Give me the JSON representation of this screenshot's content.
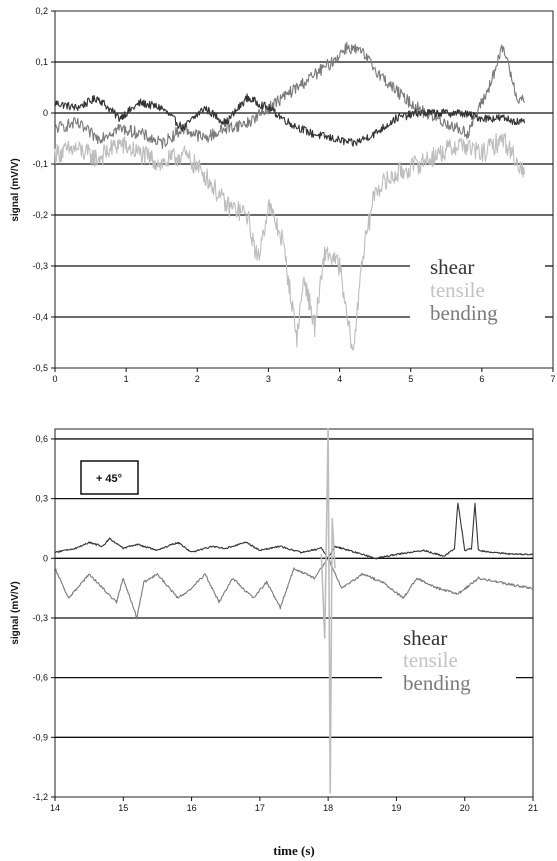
{
  "chart_data": [
    {
      "type": "line",
      "title": "",
      "xlabel": "",
      "ylabel": "signal (mV/V)",
      "xlim": [
        0,
        7
      ],
      "ylim": [
        -0.5,
        0.2
      ],
      "x_ticks": [
        "0",
        "1",
        "2",
        "3",
        "4",
        "5",
        "6",
        "7"
      ],
      "y_ticks": [
        "0,2",
        "0,1",
        "0",
        "-0,1",
        "-0,2",
        "-0,3",
        "-0,4",
        "-0,5"
      ],
      "gridlines_y": [
        0.1,
        0,
        -0.1,
        -0.2,
        -0.3,
        -0.4
      ],
      "legend": [
        "shear",
        "tensile",
        "bending"
      ],
      "legend_position": "bottom-right",
      "colors": {
        "shear": "#333333",
        "tensile": "#bdbdbd",
        "bending": "#7a7a7a"
      },
      "series": [
        {
          "name": "shear",
          "x": [
            0,
            0.3,
            0.6,
            0.9,
            1.2,
            1.5,
            1.8,
            2.1,
            2.4,
            2.7,
            3.0,
            3.3,
            3.6,
            3.9,
            4.2,
            4.5,
            4.8,
            5.1,
            5.4,
            5.7,
            6.0,
            6.3,
            6.6
          ],
          "y": [
            0.02,
            0.01,
            0.03,
            -0.01,
            0.02,
            0.01,
            -0.03,
            0.01,
            -0.02,
            0.03,
            0.01,
            -0.02,
            -0.04,
            -0.05,
            -0.06,
            -0.04,
            -0.01,
            0.0,
            0.0,
            0.0,
            -0.01,
            -0.01,
            -0.02
          ]
        },
        {
          "name": "tensile",
          "x": [
            0,
            0.3,
            0.6,
            0.9,
            1.2,
            1.5,
            1.8,
            2.1,
            2.4,
            2.7,
            2.85,
            3.0,
            3.2,
            3.4,
            3.5,
            3.65,
            3.8,
            4.0,
            4.1,
            4.2,
            4.3,
            4.5,
            4.8,
            5.1,
            5.4,
            5.7,
            6.0,
            6.3,
            6.6
          ],
          "y": [
            -0.08,
            -0.07,
            -0.09,
            -0.06,
            -0.08,
            -0.1,
            -0.08,
            -0.12,
            -0.18,
            -0.2,
            -0.29,
            -0.18,
            -0.25,
            -0.44,
            -0.32,
            -0.42,
            -0.27,
            -0.3,
            -0.4,
            -0.47,
            -0.3,
            -0.15,
            -0.12,
            -0.1,
            -0.08,
            -0.06,
            -0.08,
            -0.05,
            -0.12
          ]
        },
        {
          "name": "bending",
          "x": [
            0,
            0.3,
            0.6,
            0.9,
            1.2,
            1.5,
            1.8,
            2.1,
            2.4,
            2.7,
            3.0,
            3.3,
            3.6,
            3.9,
            4.1,
            4.3,
            4.6,
            4.9,
            5.2,
            5.5,
            5.8,
            6.1,
            6.3,
            6.5,
            6.6
          ],
          "y": [
            -0.03,
            -0.02,
            -0.05,
            -0.03,
            -0.04,
            -0.06,
            -0.03,
            -0.05,
            -0.03,
            -0.02,
            0.01,
            0.04,
            0.07,
            0.1,
            0.13,
            0.12,
            0.07,
            0.03,
            0.0,
            -0.02,
            -0.04,
            0.05,
            0.13,
            0.03,
            0.02
          ]
        }
      ]
    },
    {
      "type": "line",
      "title": "",
      "xlabel": "time (s)",
      "ylabel": "signal (mV/V)",
      "xlim": [
        14,
        21
      ],
      "ylim": [
        -1.2,
        0.65
      ],
      "x_ticks": [
        "14",
        "15",
        "16",
        "17",
        "18",
        "19",
        "20",
        "21"
      ],
      "y_ticks": [
        "0,6",
        "0,3",
        "0",
        "-0,3",
        "-0,6",
        "-0,9",
        "-1,2"
      ],
      "gridlines_y": [
        0.6,
        0.3,
        0,
        -0.3,
        -0.6,
        -0.9
      ],
      "annotation": "+ 45°",
      "legend": [
        "shear",
        "tensile",
        "bending"
      ],
      "legend_position": "bottom-right",
      "colors": {
        "shear": "#333333",
        "tensile": "#bdbdbd",
        "bending": "#7a7a7a"
      },
      "series": [
        {
          "name": "shear",
          "x": [
            14,
            14.3,
            14.5,
            14.7,
            14.8,
            15.0,
            15.2,
            15.5,
            15.8,
            16.0,
            16.3,
            16.5,
            16.8,
            17.0,
            17.3,
            17.6,
            17.9,
            18.0,
            18.1,
            18.4,
            18.7,
            19.0,
            19.4,
            19.7,
            19.85,
            19.9,
            20.0,
            20.1,
            20.15,
            20.2,
            20.4,
            20.7,
            21
          ],
          "y": [
            0.03,
            0.05,
            0.08,
            0.06,
            0.1,
            0.05,
            0.07,
            0.04,
            0.08,
            0.03,
            0.06,
            0.05,
            0.08,
            0.04,
            0.06,
            0.03,
            0.05,
            0.0,
            0.06,
            0.03,
            0.0,
            0.02,
            0.04,
            0.01,
            0.05,
            0.28,
            0.04,
            0.05,
            0.28,
            0.04,
            0.03,
            0.02,
            0.02
          ]
        },
        {
          "name": "tensile",
          "x": [
            17.9,
            17.95,
            18.0,
            18.03,
            18.06,
            18.1
          ],
          "y": [
            0.02,
            -0.4,
            0.65,
            -1.18,
            0.2,
            -0.05
          ]
        },
        {
          "name": "bending",
          "x": [
            14,
            14.2,
            14.5,
            14.7,
            14.9,
            15.0,
            15.2,
            15.3,
            15.5,
            15.8,
            16.0,
            16.2,
            16.4,
            16.6,
            16.9,
            17.1,
            17.3,
            17.5,
            17.8,
            18.0,
            18.2,
            18.5,
            18.8,
            19.1,
            19.3,
            19.6,
            19.9,
            20.2,
            20.5,
            20.8,
            21
          ],
          "y": [
            -0.05,
            -0.2,
            -0.08,
            -0.15,
            -0.22,
            -0.1,
            -0.3,
            -0.12,
            -0.08,
            -0.2,
            -0.15,
            -0.08,
            -0.22,
            -0.1,
            -0.2,
            -0.12,
            -0.25,
            -0.05,
            -0.1,
            0.0,
            -0.15,
            -0.08,
            -0.12,
            -0.2,
            -0.1,
            -0.15,
            -0.18,
            -0.1,
            -0.12,
            -0.14,
            -0.15
          ]
        }
      ]
    }
  ]
}
